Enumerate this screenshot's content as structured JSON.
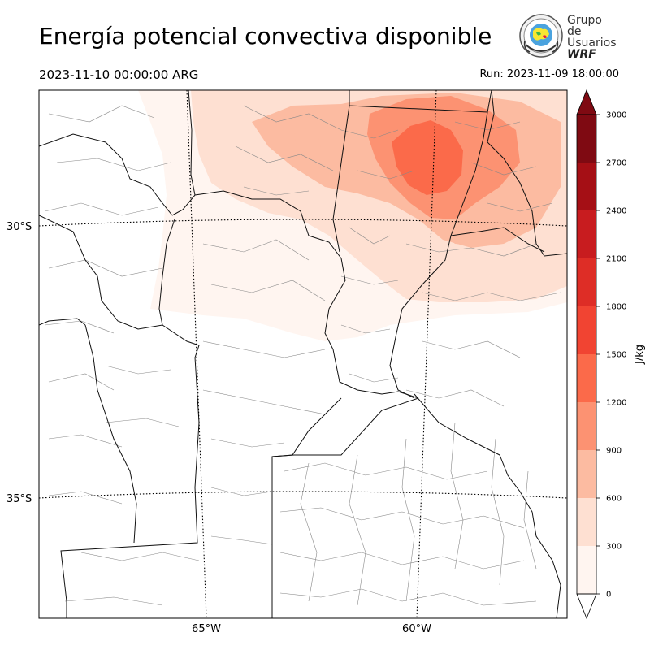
{
  "title": "Energía potencial convectiva disponible",
  "valid_time": "2023-11-10 00:00:00 ARG",
  "run_label": "Run: 2023-11-09 18:00:00",
  "logo": {
    "line1": "Grupo de",
    "line2": "Usuarios",
    "line3": "WRF",
    "icon": "wrf-globe-emblem-icon"
  },
  "axes": {
    "lat_ticks": [
      "30°S",
      "35°S"
    ],
    "lon_ticks": [
      "65°W",
      "60°W"
    ]
  },
  "colorbar": {
    "unit": "J/kg",
    "levels": [
      0,
      300,
      600,
      900,
      1200,
      1500,
      1800,
      2100,
      2400,
      2700,
      3000
    ],
    "tick_labels": [
      "0",
      "300",
      "600",
      "900",
      "1200",
      "1500",
      "1800",
      "2100",
      "2400",
      "2700",
      "3000"
    ],
    "colors": [
      "#fff5f0",
      "#fee0d2",
      "#fcbba1",
      "#fc9272",
      "#fb6a4a",
      "#f14432",
      "#de2d26",
      "#c81c1f",
      "#a50f15",
      "#7f0a12"
    ],
    "extend": "both"
  }
}
